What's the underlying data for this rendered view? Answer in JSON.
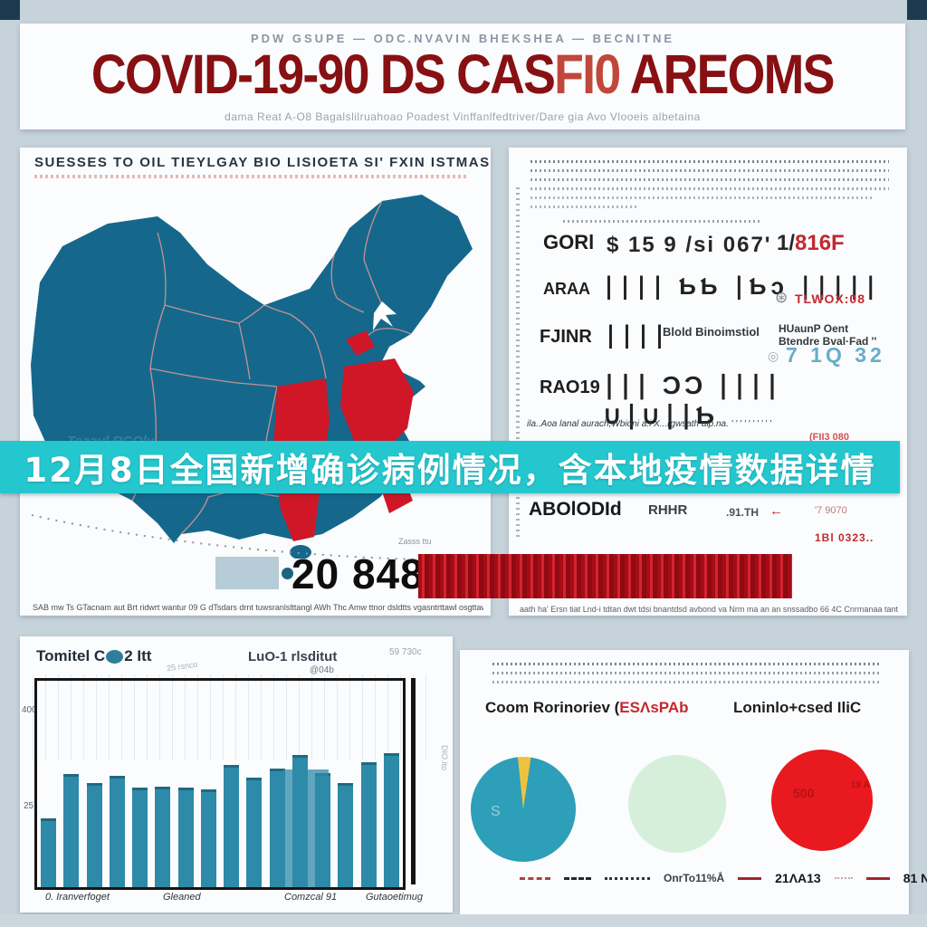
{
  "colors": {
    "page_bg": "#c7d3db",
    "corner_navy": "#1d3a52",
    "title_red": "#871013",
    "title_red_light": "#c0473a",
    "map_blue": "#15688c",
    "province_red": "#cf1728",
    "border_pink": "#e59a91",
    "banner_teal": "#25c7cf",
    "bar_red": "#c40f1a",
    "chart_teal": "#2e8aa9",
    "pie_teal": "#2d9fb8",
    "pie_yellow": "#eec23f",
    "pie_mint": "#d5efdb",
    "pie_red": "#e8191f",
    "blue_digits": "#66aecb",
    "red_text": "#c4292e"
  },
  "header": {
    "kicker": "PDW GSUPE  —  ODC.NVAVIN BHEKSHEA  —  BECNITNE",
    "title_main": "COVID-19-90 DS CAS",
    "title_light": "FI0",
    "title_end": " AREOMS",
    "subtitle": "dama Reat A-O8 Bagalslilruahoao Poadest Vinffanlfedtriver/Dare gia Avo Vlooeis albetaina"
  },
  "banner": {
    "text": "12月8日全国新增确诊病例情况，含本地疫情数据详情"
  },
  "map_panel": {
    "heading": "SUESSES TO  OIL TIEYLGAY BIO LISIOETA   SI'  FXIN ISTMAS",
    "watermark": "Teaavl RCOly",
    "curve_note": "Zasss ttu",
    "stat_value": "20 848",
    "caption": "SAB mw Ts GTacnam aut Brt ridwrt wantur 09 G   dTsdars drnt tuwsranlslttangl AWh Thc   Amw ttnor dsldtts vgasntrttawl osgttawslrawsr ba"
  },
  "right_panel": {
    "rows": [
      {
        "label": "GORl",
        "mid": "$ 15 9 /si 067'",
        "tail": "1/",
        "tail_red": "816F"
      },
      {
        "label": "ARAA",
        "ticks": "∣∣∣∣   ƄƄ   ∣Ƅɔ   ∣∣∣∣∣",
        "stamp": "⊛",
        "stamp_red": "TLWOX:08"
      },
      {
        "label": "FJINR",
        "ticks": "∣∣∣∣",
        "text1": "Blold  Binoimstiol",
        "text2": "HUaunP Oent",
        "text3": "Btendre Bval·Fad  ''",
        "eye": "◎",
        "blue_value": "7 1Q  32"
      },
      {
        "label": "RAO19",
        "ticks": "∣∣∣   ƆƆ   ∣∣∣∣   ∪∣∪∣∣Ƅ"
      }
    ],
    "footnote": "ila..Aoa lanal aurach,Wbidni a.i X...(gwsath alp.na.      ' ' ' ' ' ' ' ' ' '",
    "footnote_red": "(FII3 080",
    "sub_row": {
      "a": "ABOlODId",
      "b": "RHHR",
      "c": ".91.TH",
      "c_arrow": "←",
      "d": "'7 9070",
      "red_note": "1Bl 0323.."
    },
    "caption": "aath ha' Ersn tiat Lnd-i tdtan dwt tdsi bnantdsd avbond va Nrm ma an an snssadbo 66 4C Cnrmanaa tant"
  },
  "chart_data": [
    {
      "type": "bar",
      "t1": "Tomitel C",
      "t2": "2 Itt",
      "subtitle": "LuO-1 rlsditut",
      "subtitle2": "@04b",
      "angle_note": "25 rsnco",
      "top_note": "59 730c",
      "side_note": "DIO.ito",
      "ylabels": [
        "400",
        "25"
      ],
      "categories": [
        "0. Iranverfoget",
        "Gleaned",
        "Comzcal 91",
        "Gutaoetimug"
      ],
      "values": [
        73,
        122,
        112,
        120,
        107,
        108,
        107,
        105,
        132,
        118,
        128,
        143,
        123,
        112,
        135,
        145
      ],
      "ymax": 160
    },
    {
      "type": "pie",
      "title": "Coom Rorinoriev (",
      "title_red": "ESΛsPAb",
      "inner_label": "S",
      "slices": [
        {
          "name": "teal",
          "value": 96,
          "color": "#2d9fb8"
        },
        {
          "name": "yellow",
          "value": 4,
          "color": "#eec23f"
        }
      ]
    },
    {
      "type": "pie",
      "slices": [
        {
          "name": "mint",
          "value": 100,
          "color": "#d5efdb"
        }
      ]
    },
    {
      "type": "pie",
      "title": "Loninlo+csed IliC",
      "inner_label1": "500",
      "inner_label2": "19 A",
      "slices": [
        {
          "name": "red",
          "value": 100,
          "color": "#e8191f"
        }
      ]
    }
  ],
  "legend": {
    "items": [
      {
        "mark": "red-dash",
        "label": ""
      },
      {
        "mark": "black-dash",
        "label": ""
      },
      {
        "mark": "black-dots",
        "label": ""
      },
      {
        "mark": "none",
        "label": "OnrTo11%Å"
      },
      {
        "mark": "red-line",
        "label": "21ΛA13"
      },
      {
        "mark": "red-line",
        "label": "81 N6\""
      }
    ]
  }
}
